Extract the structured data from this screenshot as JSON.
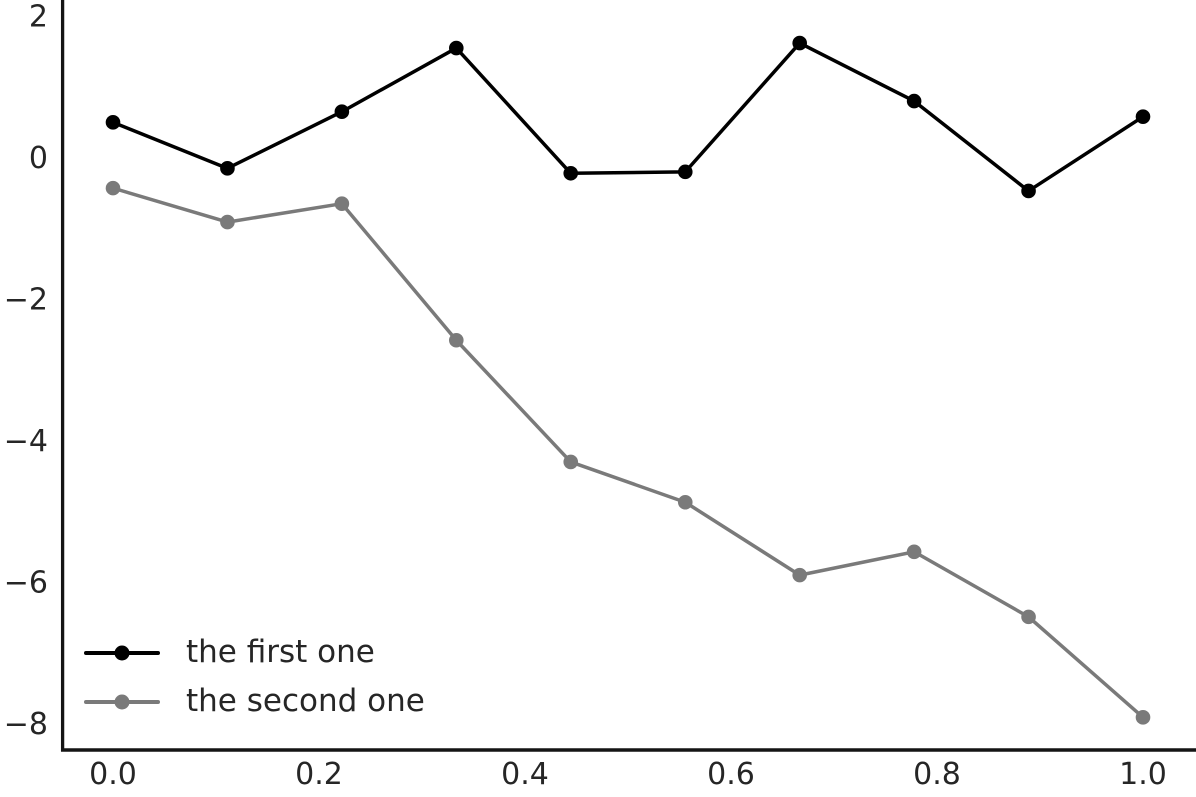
{
  "figure": {
    "background": "#ffffff",
    "text_color": "#262626",
    "spine_color": "#141414"
  },
  "legend": {
    "position": "lower left",
    "items": [
      {
        "label": "the first one",
        "color": "#000000"
      },
      {
        "label": "the second one",
        "color": "#7a7a7a"
      }
    ]
  },
  "chart_data": {
    "type": "line",
    "title": "",
    "xlabel": "",
    "ylabel": "",
    "marker": "circle",
    "grid": false,
    "legend_position": "lower left",
    "x": [
      0.0,
      0.1111,
      0.2222,
      0.3333,
      0.4444,
      0.5556,
      0.6667,
      0.7778,
      0.8889,
      1.0
    ],
    "series": [
      {
        "name": "the first one",
        "color": "#000000",
        "values": [
          0.49,
          -0.16,
          0.64,
          1.54,
          -0.23,
          -0.21,
          1.61,
          0.79,
          -0.48,
          0.57
        ]
      },
      {
        "name": "the second one",
        "color": "#7a7a7a",
        "values": [
          -0.44,
          -0.92,
          -0.66,
          -2.59,
          -4.31,
          -4.88,
          -5.91,
          -5.58,
          -6.5,
          -7.92
        ]
      }
    ],
    "xticks": {
      "values": [
        0.0,
        0.2,
        0.4,
        0.6,
        0.8,
        1.0
      ],
      "labels": [
        "0.0",
        "0.2",
        "0.4",
        "0.6",
        "0.8",
        "1.0"
      ]
    },
    "yticks": {
      "values": [
        2,
        0,
        -2,
        -4,
        -6,
        -8
      ],
      "labels": [
        "2",
        "0",
        "−2",
        "−4",
        "−6",
        "−8"
      ]
    },
    "xlim": [
      -0.05,
      1.05
    ],
    "ylim": [
      -8.38,
      2.22
    ]
  }
}
